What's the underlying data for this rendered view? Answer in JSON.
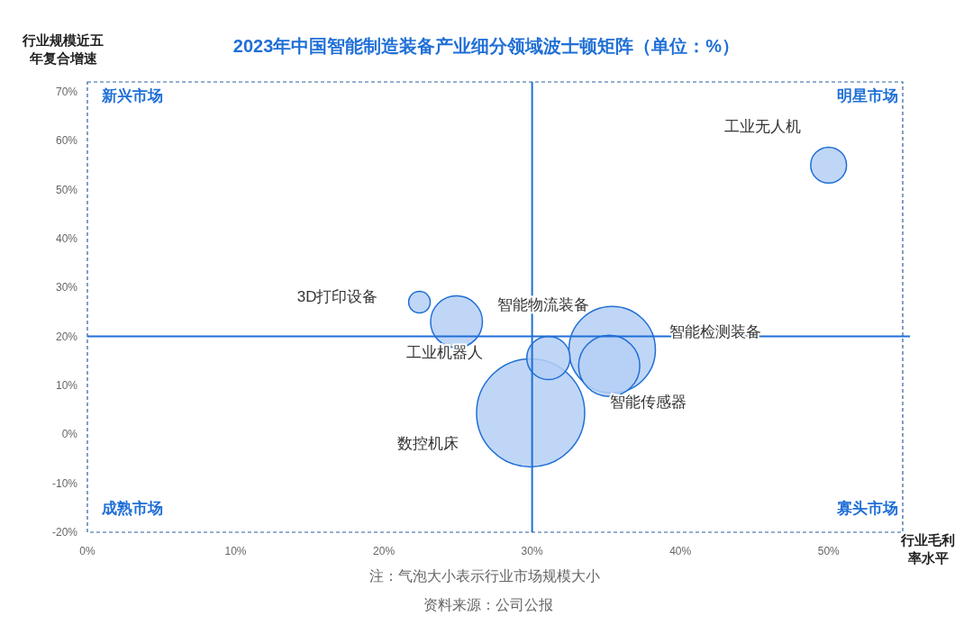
{
  "chart_data": {
    "type": "bubble",
    "title": "2023年中国智能制造装备产业细分领域波士顿矩阵（单位：%）",
    "xlabel": "行业毛利率水平",
    "ylabel": "行业规模近五年复合增速",
    "x": [
      50,
      22.4,
      24.9,
      31.1,
      35.4,
      35.2,
      29.9
    ],
    "values": [
      55,
      27,
      23,
      15.6,
      17.3,
      14,
      4.4
    ],
    "sizes": [
      0.11,
      0.04,
      0.23,
      0.16,
      0.64,
      0.32,
      1
    ],
    "color": "#b5cff5",
    "xlim": [
      0,
      55
    ],
    "ylim": [
      -20,
      72
    ],
    "xticks": [
      {
        "value": 0,
        "label": "0%"
      },
      {
        "value": 10,
        "label": "10%"
      },
      {
        "value": 20,
        "label": "20%"
      },
      {
        "value": 30,
        "label": "30%"
      },
      {
        "value": 40,
        "label": "40%"
      },
      {
        "value": 50,
        "label": "50%"
      }
    ],
    "yticks": [
      {
        "value": -20,
        "label": "-20%"
      },
      {
        "value": -10,
        "label": "-10%"
      },
      {
        "value": 0,
        "label": "0%"
      },
      {
        "value": 10,
        "label": "10%"
      },
      {
        "value": 20,
        "label": "20%"
      },
      {
        "value": 30,
        "label": "30%"
      },
      {
        "value": 40,
        "label": "40%"
      },
      {
        "value": 50,
        "label": "50%"
      },
      {
        "value": 60,
        "label": "60%"
      },
      {
        "value": 70,
        "label": "70%"
      }
    ],
    "ref_lines": [
      {
        "axis": "x",
        "value": 30,
        "color": "#1f6fd6"
      },
      {
        "axis": "y",
        "value": 20,
        "color": "#1f6fd6"
      }
    ],
    "annotations": [
      "工业无人机",
      "3D打印设备",
      "工业机器人",
      "智能物流装备",
      "智能检测装备",
      "智能传感器",
      "数控机床",
      "新兴市场",
      "明星市场",
      "成熟市场",
      "寡头市场",
      "注：气泡大小表示行业市场规模大小",
      "资料来源：公司公报"
    ]
  }
}
